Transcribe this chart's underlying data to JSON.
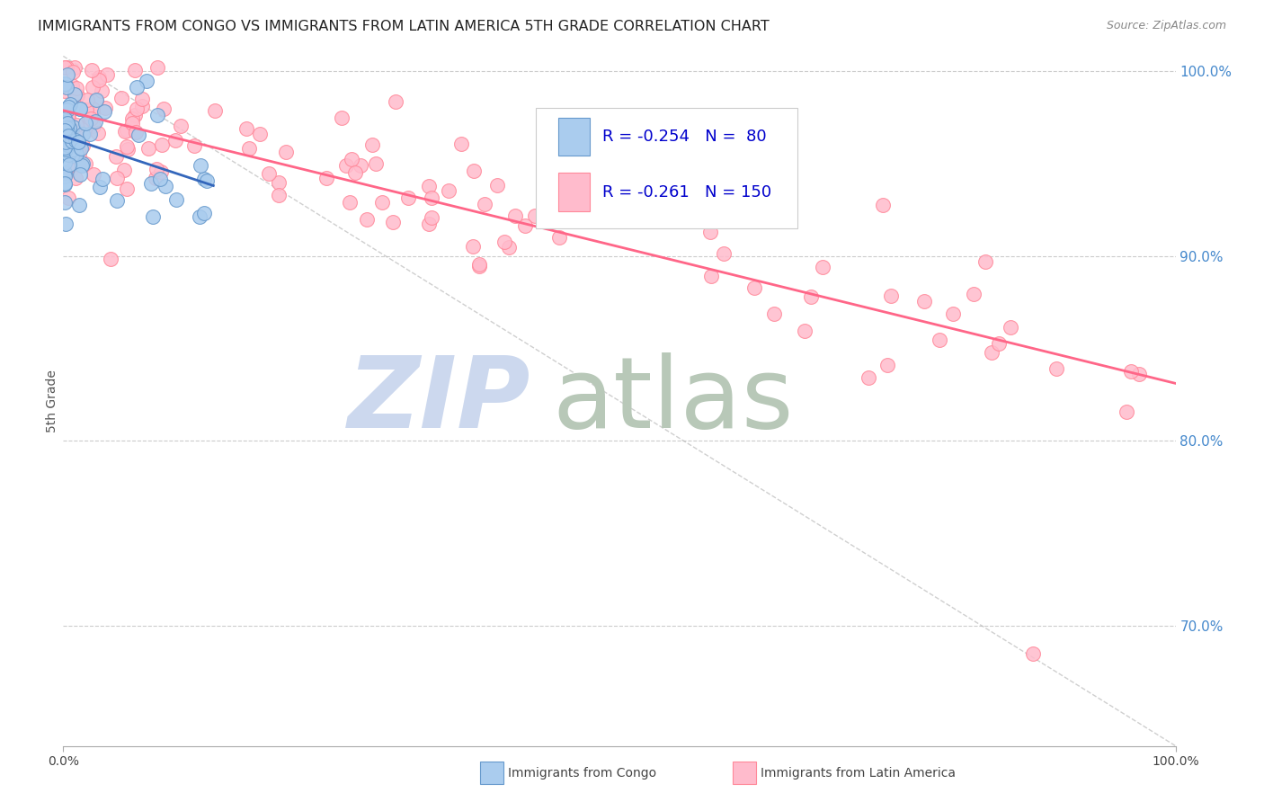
{
  "title": "IMMIGRANTS FROM CONGO VS IMMIGRANTS FROM LATIN AMERICA 5TH GRADE CORRELATION CHART",
  "source": "Source: ZipAtlas.com",
  "ylabel": "5th Grade",
  "xlim": [
    0.0,
    1.0
  ],
  "ylim": [
    0.635,
    1.008
  ],
  "yticks": [
    0.7,
    0.8,
    0.9,
    1.0
  ],
  "ytick_labels": [
    "70.0%",
    "80.0%",
    "90.0%",
    "100.0%"
  ],
  "xticks": [
    0.0,
    1.0
  ],
  "xtick_labels": [
    "0.0%",
    "100.0%"
  ],
  "congo_R": -0.254,
  "congo_N": 80,
  "latin_R": -0.261,
  "latin_N": 150,
  "congo_color": "#aaccee",
  "congo_edge": "#6699cc",
  "latin_color": "#ffbbcc",
  "latin_edge": "#ff8899",
  "congo_trend_color": "#3366bb",
  "latin_trend_color": "#ff6688",
  "diag_color": "#bbbbbb",
  "watermark_ZIP_color": "#ccd8ee",
  "watermark_atlas_color": "#b8c8b8",
  "background": "#ffffff",
  "grid_color": "#cccccc",
  "title_fontsize": 11.5,
  "source_fontsize": 9,
  "ylabel_fontsize": 9,
  "tick_fontsize": 10,
  "legend_fontsize": 13,
  "seed": 42
}
